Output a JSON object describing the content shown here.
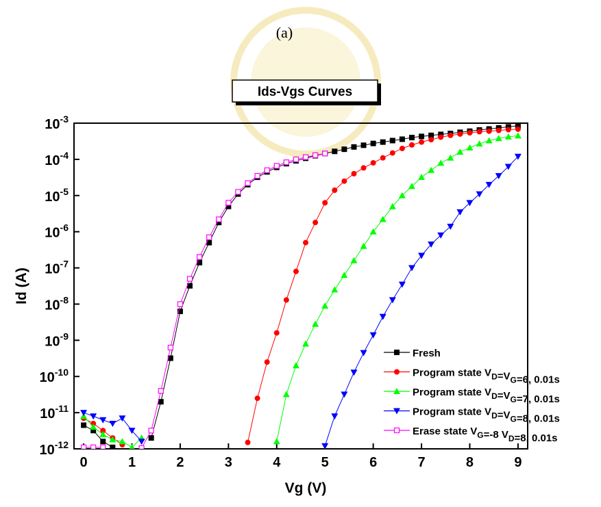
{
  "chart_data": {
    "type": "line",
    "title": "(a)",
    "subtitle": "Ids-Vgs Curves",
    "x_label": "Vg (V)",
    "y_label": "Id (A)",
    "log_y": true,
    "legend_position": "lower right",
    "xlim": [
      -0.2,
      9.2
    ],
    "xticks": [
      0,
      1,
      2,
      3,
      4,
      5,
      6,
      7,
      8,
      9
    ],
    "ylim": [
      1e-12,
      0.001
    ],
    "yticks": [
      {
        "value": 0.001,
        "label": "10-3"
      },
      {
        "value": 0.0001,
        "label": "10-4"
      },
      {
        "value": 1e-05,
        "label": "10-5"
      },
      {
        "value": 1e-06,
        "label": "10-6"
      },
      {
        "value": 1e-07,
        "label": "10-7"
      },
      {
        "value": 1e-08,
        "label": "10-8"
      },
      {
        "value": 1e-09,
        "label": "10-9"
      },
      {
        "value": 1e-10,
        "label": "10-10"
      },
      {
        "value": 1e-11,
        "label": "10-11"
      },
      {
        "value": 1e-12,
        "label": "10-12"
      }
    ],
    "x": [
      0,
      0.2,
      0.4,
      0.6,
      0.8,
      1,
      1.2,
      1.4,
      1.6,
      1.8,
      2,
      2.2,
      2.4,
      2.6,
      2.8,
      3,
      3.2,
      3.4,
      3.6,
      3.8,
      4,
      4.2,
      4.4,
      4.6,
      4.8,
      5,
      5.2,
      5.4,
      5.6,
      5.8,
      6,
      6.2,
      6.4,
      6.6,
      6.8,
      7,
      7.2,
      7.4,
      7.6,
      7.8,
      8,
      8.2,
      8.4,
      8.6,
      8.8,
      9
    ],
    "series": [
      {
        "name": "Fresh",
        "color": "#000000",
        "marker": "square",
        "values": [
          4.5e-12,
          3.2e-12,
          1.6e-12,
          1.1e-12,
          null,
          null,
          null,
          2e-12,
          2e-11,
          3.2e-10,
          6.3e-09,
          3.2e-08,
          1.4e-07,
          5e-07,
          1.8e-06,
          5e-06,
          1.1e-05,
          2e-05,
          3.2e-05,
          4.5e-05,
          6e-05,
          7.6e-05,
          9.1e-05,
          0.000107,
          0.000126,
          0.000145,
          0.000166,
          0.00019,
          0.00022,
          0.000245,
          0.000275,
          0.0003,
          0.00033,
          0.00036,
          0.0004,
          0.00043,
          0.00046,
          0.00049,
          0.00052,
          0.00056,
          0.0006,
          0.00065,
          0.00069,
          0.00074,
          0.00079,
          0.00085
        ]
      },
      {
        "name": "Program state VD=VG=6, 0.01s",
        "color": "#ff0000",
        "marker": "circle",
        "values": [
          7e-12,
          5e-12,
          3.2e-12,
          2e-12,
          1.3e-12,
          null,
          null,
          null,
          null,
          null,
          null,
          null,
          null,
          null,
          null,
          null,
          null,
          1.5e-12,
          2.5e-11,
          2.5e-10,
          1.6e-09,
          1.3e-08,
          8e-08,
          5e-07,
          1.8e-06,
          6.3e-06,
          1.4e-05,
          2.5e-05,
          4e-05,
          5.8e-05,
          8e-05,
          0.00011,
          0.00015,
          0.0002,
          0.00025,
          0.0003,
          0.00035,
          0.00041,
          0.00046,
          0.0005,
          0.00054,
          0.00058,
          0.0006,
          0.00063,
          0.00066,
          0.00068
        ]
      },
      {
        "name": "Program state VD=VG=7, 0.01s",
        "color": "#00ff00",
        "marker": "triangle-up",
        "values": [
          8e-12,
          4e-12,
          2.5e-12,
          1.8e-12,
          1.6e-12,
          1.1e-12,
          2e-12,
          null,
          null,
          null,
          null,
          null,
          null,
          null,
          null,
          null,
          null,
          null,
          null,
          null,
          1.6e-12,
          3.2e-11,
          2e-10,
          8e-10,
          2.8e-09,
          8.9e-09,
          2.5e-08,
          6.3e-08,
          1.6e-07,
          4e-07,
          1e-06,
          2.2e-06,
          5e-06,
          1e-05,
          1.8e-05,
          3.2e-05,
          5e-05,
          7.9e-05,
          0.00011,
          0.00016,
          0.00021,
          0.00027,
          0.00033,
          0.00038,
          0.00042,
          0.00045
        ]
      },
      {
        "name": "Program state VD=VG=8, 0.01s",
        "color": "#0000ff",
        "marker": "triangle-down",
        "values": [
          1e-11,
          8e-12,
          6.3e-12,
          5e-12,
          7e-12,
          3.2e-12,
          1.6e-12,
          null,
          null,
          null,
          null,
          null,
          null,
          null,
          null,
          null,
          null,
          null,
          null,
          null,
          null,
          null,
          null,
          null,
          null,
          1.2e-12,
          8e-12,
          3.2e-11,
          1.3e-10,
          4.5e-10,
          1.4e-09,
          4.5e-09,
          1.3e-08,
          3.5e-08,
          1e-07,
          2.2e-07,
          4.5e-07,
          8e-07,
          1.4e-06,
          3.5e-06,
          6.3e-06,
          1.1e-05,
          2e-05,
          3.5e-05,
          6.3e-05,
          0.00012
        ]
      },
      {
        "name": "Erase state VG=-8 VD=8, 0.01s",
        "color": "#ff00ff",
        "marker": "square-open",
        "values": [
          1.1e-12,
          1.1e-12,
          1.1e-12,
          null,
          null,
          null,
          1.05e-12,
          3.2e-12,
          4e-11,
          6.3e-10,
          1e-08,
          5e-08,
          2e-07,
          7e-07,
          2.2e-06,
          6.3e-06,
          1.26e-05,
          2.2e-05,
          3.5e-05,
          5e-05,
          6.6e-05,
          8.3e-05,
          0.0001,
          0.000115,
          0.00013,
          0.000145,
          null,
          null,
          null,
          null,
          null,
          null,
          null,
          null,
          null,
          null,
          null,
          null,
          null,
          null,
          null,
          null,
          null,
          null,
          null,
          null
        ]
      }
    ]
  }
}
